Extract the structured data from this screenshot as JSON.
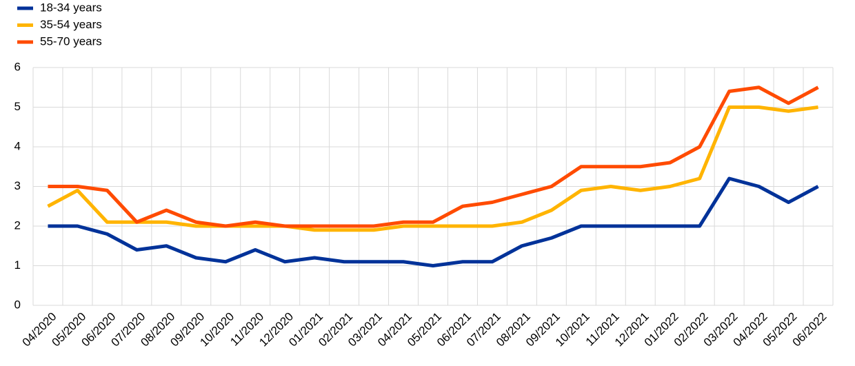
{
  "chart_data": {
    "type": "line",
    "categories": [
      "04/2020",
      "05/2020",
      "06/2020",
      "07/2020",
      "08/2020",
      "09/2020",
      "10/2020",
      "11/2020",
      "12/2020",
      "01/2021",
      "02/2021",
      "03/2021",
      "04/2021",
      "05/2021",
      "06/2021",
      "07/2021",
      "08/2021",
      "09/2021",
      "10/2021",
      "11/2021",
      "12/2021",
      "01/2022",
      "02/2022",
      "03/2022",
      "04/2022",
      "05/2022",
      "06/2022"
    ],
    "series": [
      {
        "name": "18-34 years",
        "color": "#003299",
        "values": [
          2.0,
          2.0,
          1.8,
          1.4,
          1.5,
          1.2,
          1.1,
          1.4,
          1.1,
          1.2,
          1.1,
          1.1,
          1.1,
          1.0,
          1.1,
          1.1,
          1.5,
          1.7,
          2.0,
          2.0,
          2.0,
          2.0,
          2.0,
          3.2,
          3.0,
          2.6,
          3.0
        ]
      },
      {
        "name": "35-54 years",
        "color": "#ffb400",
        "values": [
          2.5,
          2.9,
          2.1,
          2.1,
          2.1,
          2.0,
          2.0,
          2.0,
          2.0,
          1.9,
          1.9,
          1.9,
          2.0,
          2.0,
          2.0,
          2.0,
          2.1,
          2.4,
          2.9,
          3.0,
          2.9,
          3.0,
          3.2,
          5.0,
          5.0,
          4.9,
          5.0
        ]
      },
      {
        "name": "55-70 years",
        "color": "#ff4b00",
        "values": [
          3.0,
          3.0,
          2.9,
          2.1,
          2.4,
          2.1,
          2.0,
          2.1,
          2.0,
          2.0,
          2.0,
          2.0,
          2.1,
          2.1,
          2.5,
          2.6,
          2.8,
          3.0,
          3.5,
          3.5,
          3.5,
          3.6,
          4.0,
          5.4,
          5.5,
          5.1,
          5.5
        ]
      }
    ],
    "ylim": [
      0,
      6
    ],
    "yticks": [
      0,
      1,
      2,
      3,
      4,
      5,
      6
    ],
    "grid": true
  }
}
